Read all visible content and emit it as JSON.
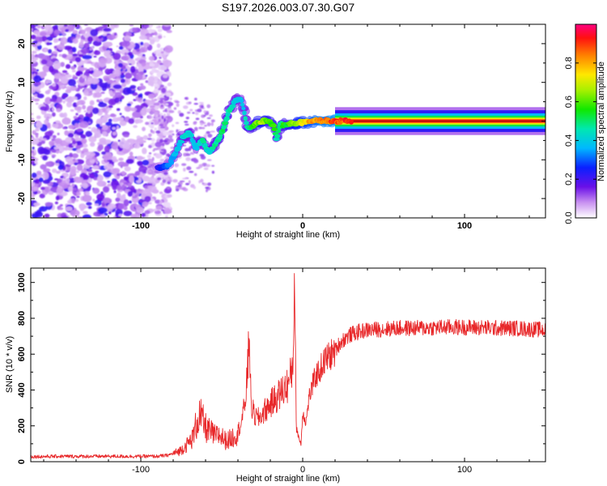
{
  "title": "S197.2026.003.07.30.G07",
  "chart_data": [
    {
      "type": "heatmap",
      "xlabel": "Height of straight line (km)",
      "ylabel": "Frequency (Hz)",
      "xlim": [
        -168,
        150
      ],
      "ylim": [
        -25,
        25
      ],
      "x_ticks": [
        -100,
        0,
        100
      ],
      "y_ticks": [
        -20,
        -10,
        0,
        10,
        20
      ],
      "colorbar": {
        "label": "Normalized spectral amplitude",
        "range": [
          0,
          1
        ],
        "ticks": [
          "0.0",
          "0.2",
          "0.4",
          "0.6",
          "0.8"
        ],
        "tick_values": [
          0,
          0.2,
          0.4,
          0.6,
          0.8
        ]
      },
      "ridge": {
        "x": [
          -90,
          -86,
          -82,
          -78,
          -74,
          -70,
          -66,
          -62,
          -58,
          -54,
          -50,
          -46,
          -42,
          -38,
          -34,
          -30,
          -26,
          -22,
          -18,
          -16,
          -14,
          -10,
          -6,
          -2,
          2,
          6,
          10,
          15,
          20,
          25,
          30,
          40,
          60,
          80,
          100,
          120,
          150
        ],
        "y": [
          -12,
          -12,
          -11,
          -8,
          -4,
          -3,
          -7,
          -5,
          -8,
          -6,
          -3,
          2,
          5,
          6,
          -2,
          -1,
          0,
          0,
          -1,
          -5,
          -1,
          -1,
          -0.5,
          -0.5,
          -0.2,
          0,
          0,
          0,
          0,
          0,
          0,
          0,
          0,
          0,
          0,
          0,
          0
        ],
        "amplitude": [
          0.25,
          0.3,
          0.35,
          0.4,
          0.45,
          0.45,
          0.4,
          0.5,
          0.45,
          0.5,
          0.55,
          0.5,
          0.45,
          0.4,
          0.5,
          0.6,
          0.7,
          0.65,
          0.6,
          0.5,
          0.55,
          0.6,
          0.7,
          0.75,
          0.8,
          0.85,
          0.9,
          0.92,
          0.95,
          0.97,
          0.97,
          0.97,
          0.97,
          0.97,
          0.97,
          0.97,
          0.97
        ]
      }
    },
    {
      "type": "line",
      "xlabel": "Height of straight line (km)",
      "ylabel": "SNR (10 * v/v)",
      "xlim": [
        -168,
        150
      ],
      "ylim": [
        0,
        1080
      ],
      "x_ticks": [
        -100,
        0,
        100
      ],
      "y_ticks": [
        0,
        200,
        400,
        600,
        800,
        1000
      ],
      "series": [
        {
          "name": "SNR",
          "color": "#e8282a",
          "x": [
            -168,
            -150,
            -130,
            -110,
            -100,
            -90,
            -84,
            -80,
            -76,
            -72,
            -68,
            -66,
            -64,
            -62,
            -60,
            -58,
            -56,
            -54,
            -52,
            -50,
            -48,
            -46,
            -44,
            -42,
            -40,
            -38,
            -36,
            -34,
            -33,
            -32,
            -30,
            -28,
            -26,
            -24,
            -22,
            -20,
            -18,
            -16,
            -14,
            -12,
            -10,
            -8,
            -6,
            -5,
            -4,
            -2,
            -1,
            0,
            2,
            4,
            6,
            8,
            10,
            12,
            15,
            18,
            20,
            22,
            25,
            28,
            30,
            35,
            40,
            50,
            60,
            70,
            80,
            90,
            100,
            110,
            120,
            130,
            140,
            150
          ],
          "y": [
            28,
            30,
            30,
            30,
            30,
            30,
            35,
            45,
            60,
            90,
            130,
            200,
            260,
            230,
            190,
            170,
            160,
            140,
            150,
            140,
            120,
            120,
            130,
            150,
            170,
            220,
            300,
            500,
            760,
            320,
            260,
            240,
            250,
            280,
            300,
            320,
            340,
            360,
            380,
            400,
            420,
            450,
            550,
            1080,
            200,
            120,
            100,
            280,
            220,
            360,
            420,
            480,
            500,
            540,
            580,
            600,
            620,
            650,
            680,
            700,
            710,
            725,
            735,
            740,
            745,
            745,
            748,
            750,
            750,
            748,
            745,
            745,
            740,
            735
          ]
        }
      ]
    }
  ]
}
